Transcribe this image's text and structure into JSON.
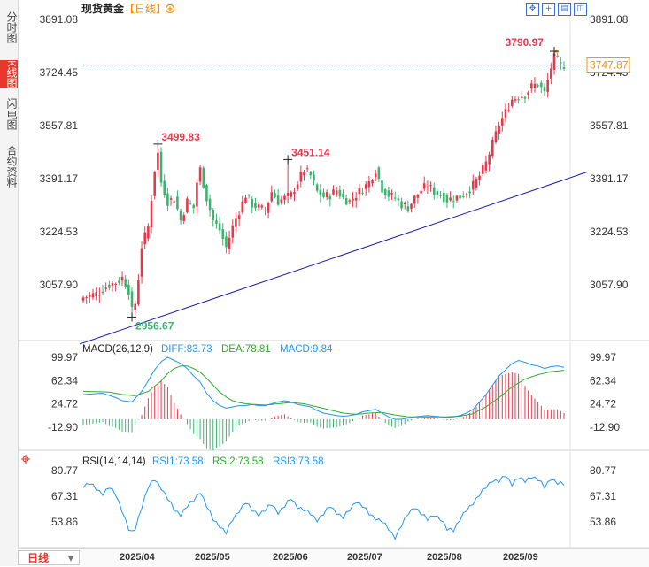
{
  "tabs": [
    {
      "label": "分时图",
      "active": false
    },
    {
      "label": "K线图",
      "active": true
    },
    {
      "label": "闪电图",
      "active": false
    },
    {
      "label": "合约资料",
      "active": false
    }
  ],
  "header": {
    "title": "现货黄金",
    "period_tag": "【日线】",
    "settings_icon": "gear-circle-icon"
  },
  "toolbar_icons": [
    "move-icon",
    "zoom-in-icon",
    "stack-icon",
    "split-icon"
  ],
  "colors": {
    "up": "#e8384c",
    "down": "#3cb371",
    "trend": "#1a1aaa",
    "diff": "#2196f3",
    "dea": "#2eaa2e",
    "rsi": "#2196f3",
    "price_tag": "#ff8c00"
  },
  "bottom": {
    "period": "日线",
    "months": [
      "2025/04",
      "2025/05",
      "2025/06",
      "2025/07",
      "2025/08",
      "2025/09"
    ]
  },
  "main_panel": {
    "y_ticks": [
      "3891.08",
      "3724.45",
      "3557.81",
      "3391.17",
      "3224.53",
      "3057.90"
    ],
    "current_price": "3747.87",
    "annotations": {
      "high1": "3499.83",
      "high2": "3451.14",
      "low1": "2956.67",
      "high3": "3790.97"
    }
  },
  "macd_panel": {
    "title": "MACD(26,12,9)",
    "diff_text": "DIFF:83.73",
    "dea_text": "DEA:78.81",
    "macd_text": "MACD:9.84",
    "y_ticks": [
      "99.97",
      "62.34",
      "24.72",
      "-12.90"
    ]
  },
  "rsi_panel": {
    "title": "RSI(14,14,14)",
    "rsi1_text": "RSI1:73.58",
    "rsi2_text": "RSI2:73.58",
    "rsi3_text": "RSI3:73.58",
    "y_ticks": [
      "80.77",
      "67.31",
      "53.86"
    ]
  },
  "chart_data": [
    {
      "type": "candlestick",
      "title": "现货黄金 日线",
      "ylim": [
        2890,
        3940
      ],
      "trendline": {
        "from": [
          "start",
          2872
        ],
        "to": [
          "end",
          3412
        ]
      },
      "close_anchors": [
        [
          0,
          3018
        ],
        [
          4,
          3030
        ],
        [
          8,
          3058
        ],
        [
          10,
          3065
        ],
        [
          12,
          3080
        ],
        [
          14,
          3040
        ],
        [
          15,
          2975
        ],
        [
          16,
          3000
        ],
        [
          17,
          3080
        ],
        [
          18,
          3180
        ],
        [
          19,
          3210
        ],
        [
          20,
          3240
        ],
        [
          21,
          3330
        ],
        [
          22,
          3420
        ],
        [
          23,
          3470
        ],
        [
          24,
          3380
        ],
        [
          26,
          3320
        ],
        [
          28,
          3330
        ],
        [
          30,
          3260
        ],
        [
          32,
          3320
        ],
        [
          34,
          3300
        ],
        [
          35,
          3380
        ],
        [
          36,
          3420
        ],
        [
          38,
          3330
        ],
        [
          40,
          3260
        ],
        [
          42,
          3230
        ],
        [
          44,
          3175
        ],
        [
          46,
          3240
        ],
        [
          48,
          3290
        ],
        [
          50,
          3340
        ],
        [
          52,
          3310
        ],
        [
          54,
          3300
        ],
        [
          56,
          3290
        ],
        [
          58,
          3350
        ],
        [
          60,
          3320
        ],
        [
          62,
          3330
        ],
        [
          64,
          3340
        ],
        [
          66,
          3380
        ],
        [
          68,
          3420
        ],
        [
          70,
          3400
        ],
        [
          72,
          3350
        ],
        [
          74,
          3335
        ],
        [
          76,
          3340
        ],
        [
          78,
          3355
        ],
        [
          80,
          3330
        ],
        [
          82,
          3320
        ],
        [
          84,
          3340
        ],
        [
          86,
          3360
        ],
        [
          88,
          3380
        ],
        [
          90,
          3420
        ],
        [
          92,
          3360
        ],
        [
          94,
          3340
        ],
        [
          96,
          3330
        ],
        [
          98,
          3310
        ],
        [
          100,
          3300
        ],
        [
          102,
          3330
        ],
        [
          104,
          3355
        ],
        [
          106,
          3370
        ],
        [
          108,
          3350
        ],
        [
          110,
          3340
        ],
        [
          112,
          3325
        ],
        [
          114,
          3330
        ],
        [
          116,
          3335
        ],
        [
          118,
          3350
        ],
        [
          120,
          3370
        ],
        [
          122,
          3400
        ],
        [
          124,
          3440
        ],
        [
          126,
          3500
        ],
        [
          128,
          3560
        ],
        [
          130,
          3600
        ],
        [
          132,
          3640
        ],
        [
          134,
          3650
        ],
        [
          136,
          3655
        ],
        [
          138,
          3680
        ],
        [
          140,
          3690
        ],
        [
          142,
          3660
        ],
        [
          144,
          3740
        ],
        [
          145,
          3770
        ],
        [
          146,
          3760
        ],
        [
          147,
          3745
        ],
        [
          148,
          3748
        ]
      ],
      "annotations": [
        {
          "index": 23,
          "value": 3499.83,
          "label": "3499.83",
          "type": "high"
        },
        {
          "index": 63,
          "value": 3451.14,
          "label": "3451.14",
          "type": "high"
        },
        {
          "index": 15,
          "value": 2956.67,
          "label": "2956.67",
          "type": "low"
        },
        {
          "index": 145,
          "value": 3790.97,
          "label": "3790.97",
          "type": "high"
        }
      ]
    },
    {
      "type": "line+bar",
      "title": "MACD(26,12,9)",
      "ylim": [
        -35,
        115
      ],
      "series": [
        {
          "name": "DIFF",
          "anchors": [
            [
              0,
              40
            ],
            [
              6,
              42
            ],
            [
              10,
              35
            ],
            [
              12,
              30
            ],
            [
              15,
              28
            ],
            [
              18,
              45
            ],
            [
              20,
              62
            ],
            [
              22,
              80
            ],
            [
              24,
              93
            ],
            [
              26,
              100
            ],
            [
              28,
              95
            ],
            [
              30,
              90
            ],
            [
              32,
              82
            ],
            [
              34,
              70
            ],
            [
              36,
              60
            ],
            [
              38,
              42
            ],
            [
              40,
              30
            ],
            [
              42,
              22
            ],
            [
              44,
              18
            ],
            [
              46,
              20
            ],
            [
              48,
              22
            ],
            [
              50,
              22
            ],
            [
              52,
              24
            ],
            [
              54,
              22
            ],
            [
              56,
              22
            ],
            [
              58,
              25
            ],
            [
              60,
              28
            ],
            [
              62,
              30
            ],
            [
              64,
              28
            ],
            [
              66,
              24
            ],
            [
              68,
              22
            ],
            [
              70,
              20
            ],
            [
              72,
              14
            ],
            [
              74,
              10
            ],
            [
              76,
              8
            ],
            [
              78,
              6
            ],
            [
              80,
              5
            ],
            [
              82,
              6
            ],
            [
              84,
              8
            ],
            [
              86,
              12
            ],
            [
              88,
              14
            ],
            [
              90,
              16
            ],
            [
              92,
              10
            ],
            [
              94,
              4
            ],
            [
              96,
              0
            ],
            [
              98,
              0
            ],
            [
              100,
              2
            ],
            [
              102,
              4
            ],
            [
              104,
              5
            ],
            [
              106,
              6
            ],
            [
              108,
              5
            ],
            [
              110,
              4
            ],
            [
              112,
              3
            ],
            [
              114,
              4
            ],
            [
              116,
              6
            ],
            [
              118,
              10
            ],
            [
              120,
              16
            ],
            [
              122,
              28
            ],
            [
              124,
              40
            ],
            [
              126,
              55
            ],
            [
              128,
              70
            ],
            [
              130,
              80
            ],
            [
              132,
              90
            ],
            [
              134,
              95
            ],
            [
              136,
              92
            ],
            [
              138,
              88
            ],
            [
              140,
              86
            ],
            [
              142,
              82
            ],
            [
              144,
              85
            ],
            [
              146,
              86
            ],
            [
              148,
              84
            ]
          ]
        },
        {
          "name": "DEA",
          "anchors": [
            [
              0,
              45
            ],
            [
              8,
              44
            ],
            [
              12,
              40
            ],
            [
              16,
              38
            ],
            [
              20,
              45
            ],
            [
              24,
              62
            ],
            [
              26,
              74
            ],
            [
              28,
              82
            ],
            [
              30,
              86
            ],
            [
              32,
              86
            ],
            [
              34,
              82
            ],
            [
              36,
              76
            ],
            [
              38,
              66
            ],
            [
              40,
              55
            ],
            [
              42,
              44
            ],
            [
              44,
              36
            ],
            [
              46,
              30
            ],
            [
              48,
              27
            ],
            [
              50,
              25
            ],
            [
              52,
              24
            ],
            [
              56,
              23
            ],
            [
              60,
              25
            ],
            [
              64,
              27
            ],
            [
              68,
              25
            ],
            [
              72,
              20
            ],
            [
              76,
              15
            ],
            [
              80,
              10
            ],
            [
              84,
              8
            ],
            [
              88,
              10
            ],
            [
              92,
              11
            ],
            [
              96,
              7
            ],
            [
              100,
              4
            ],
            [
              104,
              4
            ],
            [
              108,
              4
            ],
            [
              112,
              4
            ],
            [
              116,
              5
            ],
            [
              120,
              9
            ],
            [
              124,
              20
            ],
            [
              128,
              35
            ],
            [
              132,
              52
            ],
            [
              136,
              65
            ],
            [
              140,
              72
            ],
            [
              144,
              77
            ],
            [
              148,
              79
            ]
          ]
        }
      ],
      "histogram": "2*(DIFF-DEA)"
    },
    {
      "type": "line",
      "title": "RSI(14,14,14)",
      "ylim": [
        44,
        86
      ],
      "series": [
        {
          "name": "RSI1",
          "anchors": [
            [
              0,
              73
            ],
            [
              2,
              74
            ],
            [
              4,
              71
            ],
            [
              6,
              69
            ],
            [
              8,
              72
            ],
            [
              10,
              68
            ],
            [
              12,
              60
            ],
            [
              14,
              50
            ],
            [
              15,
              48
            ],
            [
              16,
              50
            ],
            [
              18,
              62
            ],
            [
              20,
              72
            ],
            [
              22,
              76
            ],
            [
              24,
              72
            ],
            [
              26,
              66
            ],
            [
              28,
              60
            ],
            [
              30,
              58
            ],
            [
              32,
              62
            ],
            [
              34,
              65
            ],
            [
              36,
              70
            ],
            [
              38,
              62
            ],
            [
              40,
              55
            ],
            [
              42,
              52
            ],
            [
              44,
              48
            ],
            [
              46,
              55
            ],
            [
              48,
              60
            ],
            [
              50,
              64
            ],
            [
              52,
              60
            ],
            [
              54,
              58
            ],
            [
              56,
              60
            ],
            [
              58,
              63
            ],
            [
              60,
              59
            ],
            [
              62,
              62
            ],
            [
              64,
              66
            ],
            [
              66,
              62
            ],
            [
              68,
              60
            ],
            [
              70,
              58
            ],
            [
              72,
              55
            ],
            [
              74,
              58
            ],
            [
              76,
              62
            ],
            [
              78,
              59
            ],
            [
              80,
              56
            ],
            [
              82,
              60
            ],
            [
              84,
              65
            ],
            [
              86,
              62
            ],
            [
              88,
              58
            ],
            [
              90,
              56
            ],
            [
              92,
              54
            ],
            [
              94,
              50
            ],
            [
              96,
              46
            ],
            [
              98,
              52
            ],
            [
              100,
              58
            ],
            [
              102,
              62
            ],
            [
              104,
              58
            ],
            [
              106,
              55
            ],
            [
              108,
              58
            ],
            [
              110,
              55
            ],
            [
              112,
              50
            ],
            [
              114,
              50
            ],
            [
              116,
              55
            ],
            [
              118,
              60
            ],
            [
              120,
              64
            ],
            [
              122,
              68
            ],
            [
              124,
              72
            ],
            [
              126,
              76
            ],
            [
              128,
              75
            ],
            [
              130,
              78
            ],
            [
              132,
              74
            ],
            [
              134,
              77
            ],
            [
              136,
              75
            ],
            [
              138,
              78
            ],
            [
              140,
              76
            ],
            [
              142,
              72
            ],
            [
              144,
              77
            ],
            [
              146,
              74
            ],
            [
              148,
              73.58
            ]
          ]
        }
      ]
    }
  ]
}
